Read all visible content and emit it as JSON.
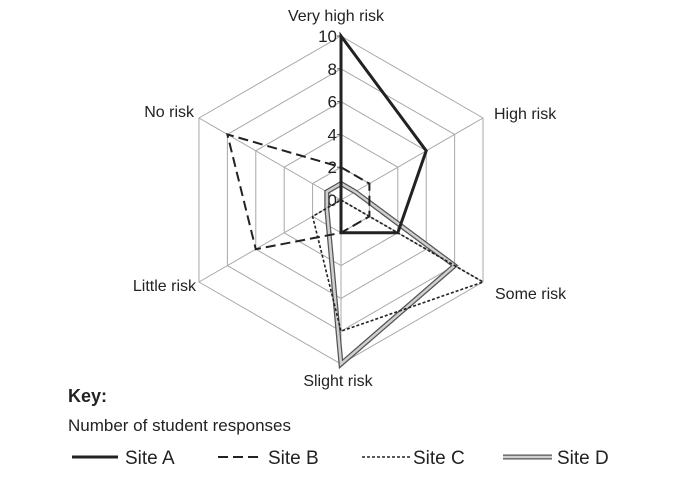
{
  "chart_data": {
    "type": "radar",
    "axes": [
      "Very high risk",
      "High risk",
      "Some risk",
      "Slight risk",
      "Little risk",
      "No risk"
    ],
    "rlim": [
      0,
      10
    ],
    "ticks": [
      "0",
      "2",
      "4",
      "6",
      "8",
      "10"
    ],
    "tick_values": [
      0,
      2,
      4,
      6,
      8,
      10
    ],
    "grid": true,
    "series": [
      {
        "name": "Site A",
        "style": "solid",
        "values": [
          10,
          6,
          4,
          2,
          0,
          0
        ]
      },
      {
        "name": "Site B",
        "style": "long-dash",
        "values": [
          2,
          2,
          2,
          2,
          6,
          8
        ]
      },
      {
        "name": "Site C",
        "style": "short-dash",
        "values": [
          0,
          0,
          10,
          8,
          2,
          0
        ]
      },
      {
        "name": "Site D",
        "style": "double",
        "values": [
          1,
          1,
          8,
          10,
          1,
          1
        ]
      }
    ],
    "key_title": "Key:",
    "key_subtitle": "Number of student responses",
    "legend_position": "bottom"
  }
}
